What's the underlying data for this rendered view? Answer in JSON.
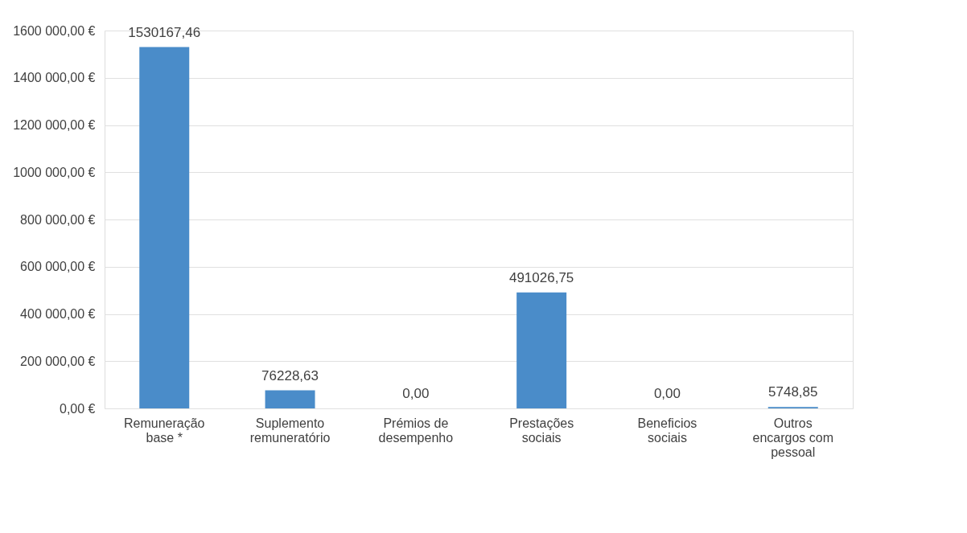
{
  "chart_data": {
    "type": "bar",
    "categories": [
      "Remuneração\nbase *",
      "Suplemento\nremuneratório",
      "Prémios de\ndesempenho",
      "Prestações\nsociais",
      "Beneficios\nsociais",
      "Outros\nencargos com\npessoal"
    ],
    "values": [
      1530167.46,
      76228.63,
      0,
      491026.75,
      0,
      5748.85
    ],
    "value_labels": [
      "1530167,46",
      "76228,63",
      "0,00",
      "491026,75",
      "0,00",
      "5748,85"
    ],
    "color": "#4a8cc9",
    "ylim": [
      0,
      1600000
    ],
    "yticks": [
      {
        "value": 0,
        "label": "0,00 €"
      },
      {
        "value": 200000,
        "label": "200 000,00 €"
      },
      {
        "value": 400000,
        "label": "400 000,00 €"
      },
      {
        "value": 600000,
        "label": "600 000,00 €"
      },
      {
        "value": 800000,
        "label": "800 000,00 €"
      },
      {
        "value": 1000000,
        "label": "1000 000,00 €"
      },
      {
        "value": 1200000,
        "label": "1200 000,00 €"
      },
      {
        "value": 1400000,
        "label": "1400 000,00 €"
      },
      {
        "value": 1600000,
        "label": "1600 000,00 €"
      }
    ],
    "grid": "y"
  }
}
